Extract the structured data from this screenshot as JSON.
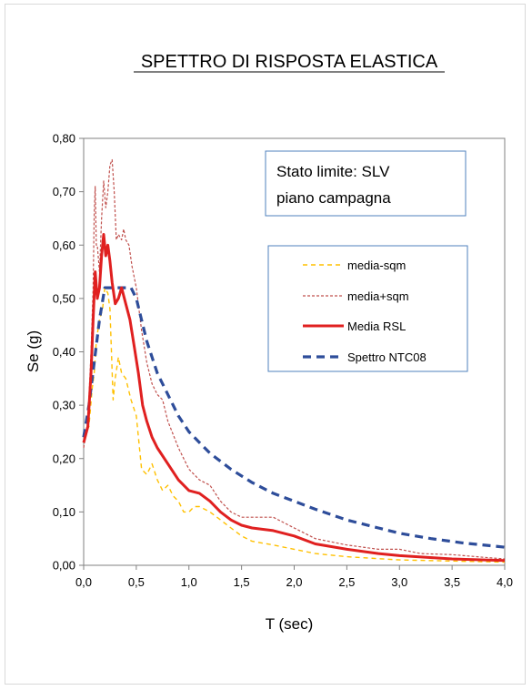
{
  "chart_data": {
    "type": "line",
    "title": "SPETTRO DI RISPOSTA ELASTICA",
    "xlabel": "T  (sec)",
    "ylabel": "Se (g)",
    "xlim": [
      0,
      4
    ],
    "ylim": [
      0,
      0.8
    ],
    "x_ticks": [
      "0,0",
      "0,5",
      "1,0",
      "1,5",
      "2,0",
      "2,5",
      "3,0",
      "3,5",
      "4,0"
    ],
    "y_ticks": [
      "0,00",
      "0,10",
      "0,20",
      "0,30",
      "0,40",
      "0,50",
      "0,60",
      "0,70",
      "0,80"
    ],
    "grid": false,
    "legend_position": "right, below annotation",
    "annotation": [
      "Stato limite: SLV",
      "piano campagna"
    ],
    "series": [
      {
        "name": "media-sqm",
        "color": "#ffc000",
        "style": "dashed",
        "points": [
          [
            0,
            0.24
          ],
          [
            0.05,
            0.26
          ],
          [
            0.08,
            0.33
          ],
          [
            0.1,
            0.36
          ],
          [
            0.12,
            0.42
          ],
          [
            0.15,
            0.46
          ],
          [
            0.18,
            0.48
          ],
          [
            0.2,
            0.52
          ],
          [
            0.23,
            0.51
          ],
          [
            0.25,
            0.48
          ],
          [
            0.28,
            0.31
          ],
          [
            0.3,
            0.35
          ],
          [
            0.33,
            0.39
          ],
          [
            0.36,
            0.36
          ],
          [
            0.4,
            0.35
          ],
          [
            0.45,
            0.31
          ],
          [
            0.5,
            0.28
          ],
          [
            0.55,
            0.18
          ],
          [
            0.6,
            0.17
          ],
          [
            0.65,
            0.19
          ],
          [
            0.7,
            0.16
          ],
          [
            0.75,
            0.14
          ],
          [
            0.8,
            0.15
          ],
          [
            0.85,
            0.13
          ],
          [
            0.9,
            0.12
          ],
          [
            0.95,
            0.1
          ],
          [
            1.0,
            0.1
          ],
          [
            1.05,
            0.11
          ],
          [
            1.1,
            0.11
          ],
          [
            1.2,
            0.1
          ],
          [
            1.3,
            0.085
          ],
          [
            1.4,
            0.07
          ],
          [
            1.5,
            0.055
          ],
          [
            1.6,
            0.045
          ],
          [
            1.8,
            0.038
          ],
          [
            2.0,
            0.03
          ],
          [
            2.2,
            0.022
          ],
          [
            2.5,
            0.016
          ],
          [
            3.0,
            0.01
          ],
          [
            3.5,
            0.008
          ],
          [
            4.0,
            0.006
          ]
        ]
      },
      {
        "name": "media+sqm",
        "color": "#c0504d",
        "style": "dashed-fine",
        "points": [
          [
            0,
            0.22
          ],
          [
            0.04,
            0.27
          ],
          [
            0.07,
            0.4
          ],
          [
            0.09,
            0.52
          ],
          [
            0.1,
            0.66
          ],
          [
            0.11,
            0.71
          ],
          [
            0.12,
            0.6
          ],
          [
            0.13,
            0.6
          ],
          [
            0.15,
            0.55
          ],
          [
            0.17,
            0.65
          ],
          [
            0.19,
            0.72
          ],
          [
            0.21,
            0.67
          ],
          [
            0.23,
            0.7
          ],
          [
            0.25,
            0.75
          ],
          [
            0.27,
            0.76
          ],
          [
            0.29,
            0.7
          ],
          [
            0.31,
            0.61
          ],
          [
            0.33,
            0.62
          ],
          [
            0.36,
            0.61
          ],
          [
            0.38,
            0.63
          ],
          [
            0.4,
            0.61
          ],
          [
            0.43,
            0.6
          ],
          [
            0.46,
            0.56
          ],
          [
            0.5,
            0.52
          ],
          [
            0.55,
            0.44
          ],
          [
            0.6,
            0.38
          ],
          [
            0.65,
            0.34
          ],
          [
            0.7,
            0.32
          ],
          [
            0.75,
            0.31
          ],
          [
            0.8,
            0.27
          ],
          [
            0.9,
            0.22
          ],
          [
            1.0,
            0.18
          ],
          [
            1.05,
            0.17
          ],
          [
            1.1,
            0.16
          ],
          [
            1.2,
            0.15
          ],
          [
            1.3,
            0.12
          ],
          [
            1.4,
            0.1
          ],
          [
            1.5,
            0.09
          ],
          [
            1.6,
            0.09
          ],
          [
            1.8,
            0.09
          ],
          [
            2.0,
            0.07
          ],
          [
            2.2,
            0.05
          ],
          [
            2.5,
            0.038
          ],
          [
            2.8,
            0.03
          ],
          [
            3.0,
            0.03
          ],
          [
            3.2,
            0.022
          ],
          [
            3.5,
            0.02
          ],
          [
            3.8,
            0.015
          ],
          [
            4.0,
            0.012
          ]
        ]
      },
      {
        "name": "Media RSL",
        "color": "#e02020",
        "style": "solid-thick",
        "points": [
          [
            0,
            0.23
          ],
          [
            0.04,
            0.26
          ],
          [
            0.07,
            0.36
          ],
          [
            0.09,
            0.46
          ],
          [
            0.11,
            0.55
          ],
          [
            0.13,
            0.5
          ],
          [
            0.15,
            0.52
          ],
          [
            0.17,
            0.58
          ],
          [
            0.19,
            0.62
          ],
          [
            0.21,
            0.58
          ],
          [
            0.23,
            0.6
          ],
          [
            0.25,
            0.57
          ],
          [
            0.27,
            0.53
          ],
          [
            0.3,
            0.49
          ],
          [
            0.33,
            0.5
          ],
          [
            0.36,
            0.52
          ],
          [
            0.4,
            0.49
          ],
          [
            0.44,
            0.46
          ],
          [
            0.48,
            0.41
          ],
          [
            0.52,
            0.36
          ],
          [
            0.56,
            0.3
          ],
          [
            0.6,
            0.27
          ],
          [
            0.65,
            0.24
          ],
          [
            0.7,
            0.22
          ],
          [
            0.8,
            0.19
          ],
          [
            0.9,
            0.16
          ],
          [
            1.0,
            0.14
          ],
          [
            1.1,
            0.135
          ],
          [
            1.2,
            0.12
          ],
          [
            1.3,
            0.1
          ],
          [
            1.4,
            0.085
          ],
          [
            1.5,
            0.075
          ],
          [
            1.6,
            0.07
          ],
          [
            1.8,
            0.065
          ],
          [
            2.0,
            0.055
          ],
          [
            2.2,
            0.04
          ],
          [
            2.5,
            0.03
          ],
          [
            2.8,
            0.022
          ],
          [
            3.0,
            0.018
          ],
          [
            3.5,
            0.012
          ],
          [
            4.0,
            0.009
          ]
        ]
      },
      {
        "name": "Spettro NTC08",
        "color": "#2e4d9a",
        "style": "dashed-thick",
        "points": [
          [
            0,
            0.24
          ],
          [
            0.05,
            0.3
          ],
          [
            0.1,
            0.38
          ],
          [
            0.15,
            0.46
          ],
          [
            0.2,
            0.52
          ],
          [
            0.25,
            0.52
          ],
          [
            0.3,
            0.52
          ],
          [
            0.35,
            0.52
          ],
          [
            0.4,
            0.52
          ],
          [
            0.45,
            0.52
          ],
          [
            0.5,
            0.5
          ],
          [
            0.6,
            0.42
          ],
          [
            0.7,
            0.36
          ],
          [
            0.8,
            0.32
          ],
          [
            0.9,
            0.28
          ],
          [
            1.0,
            0.25
          ],
          [
            1.2,
            0.21
          ],
          [
            1.4,
            0.18
          ],
          [
            1.6,
            0.155
          ],
          [
            1.8,
            0.135
          ],
          [
            2.0,
            0.12
          ],
          [
            2.2,
            0.105
          ],
          [
            2.5,
            0.085
          ],
          [
            2.8,
            0.07
          ],
          [
            3.0,
            0.06
          ],
          [
            3.3,
            0.05
          ],
          [
            3.6,
            0.042
          ],
          [
            4.0,
            0.034
          ]
        ]
      }
    ]
  }
}
